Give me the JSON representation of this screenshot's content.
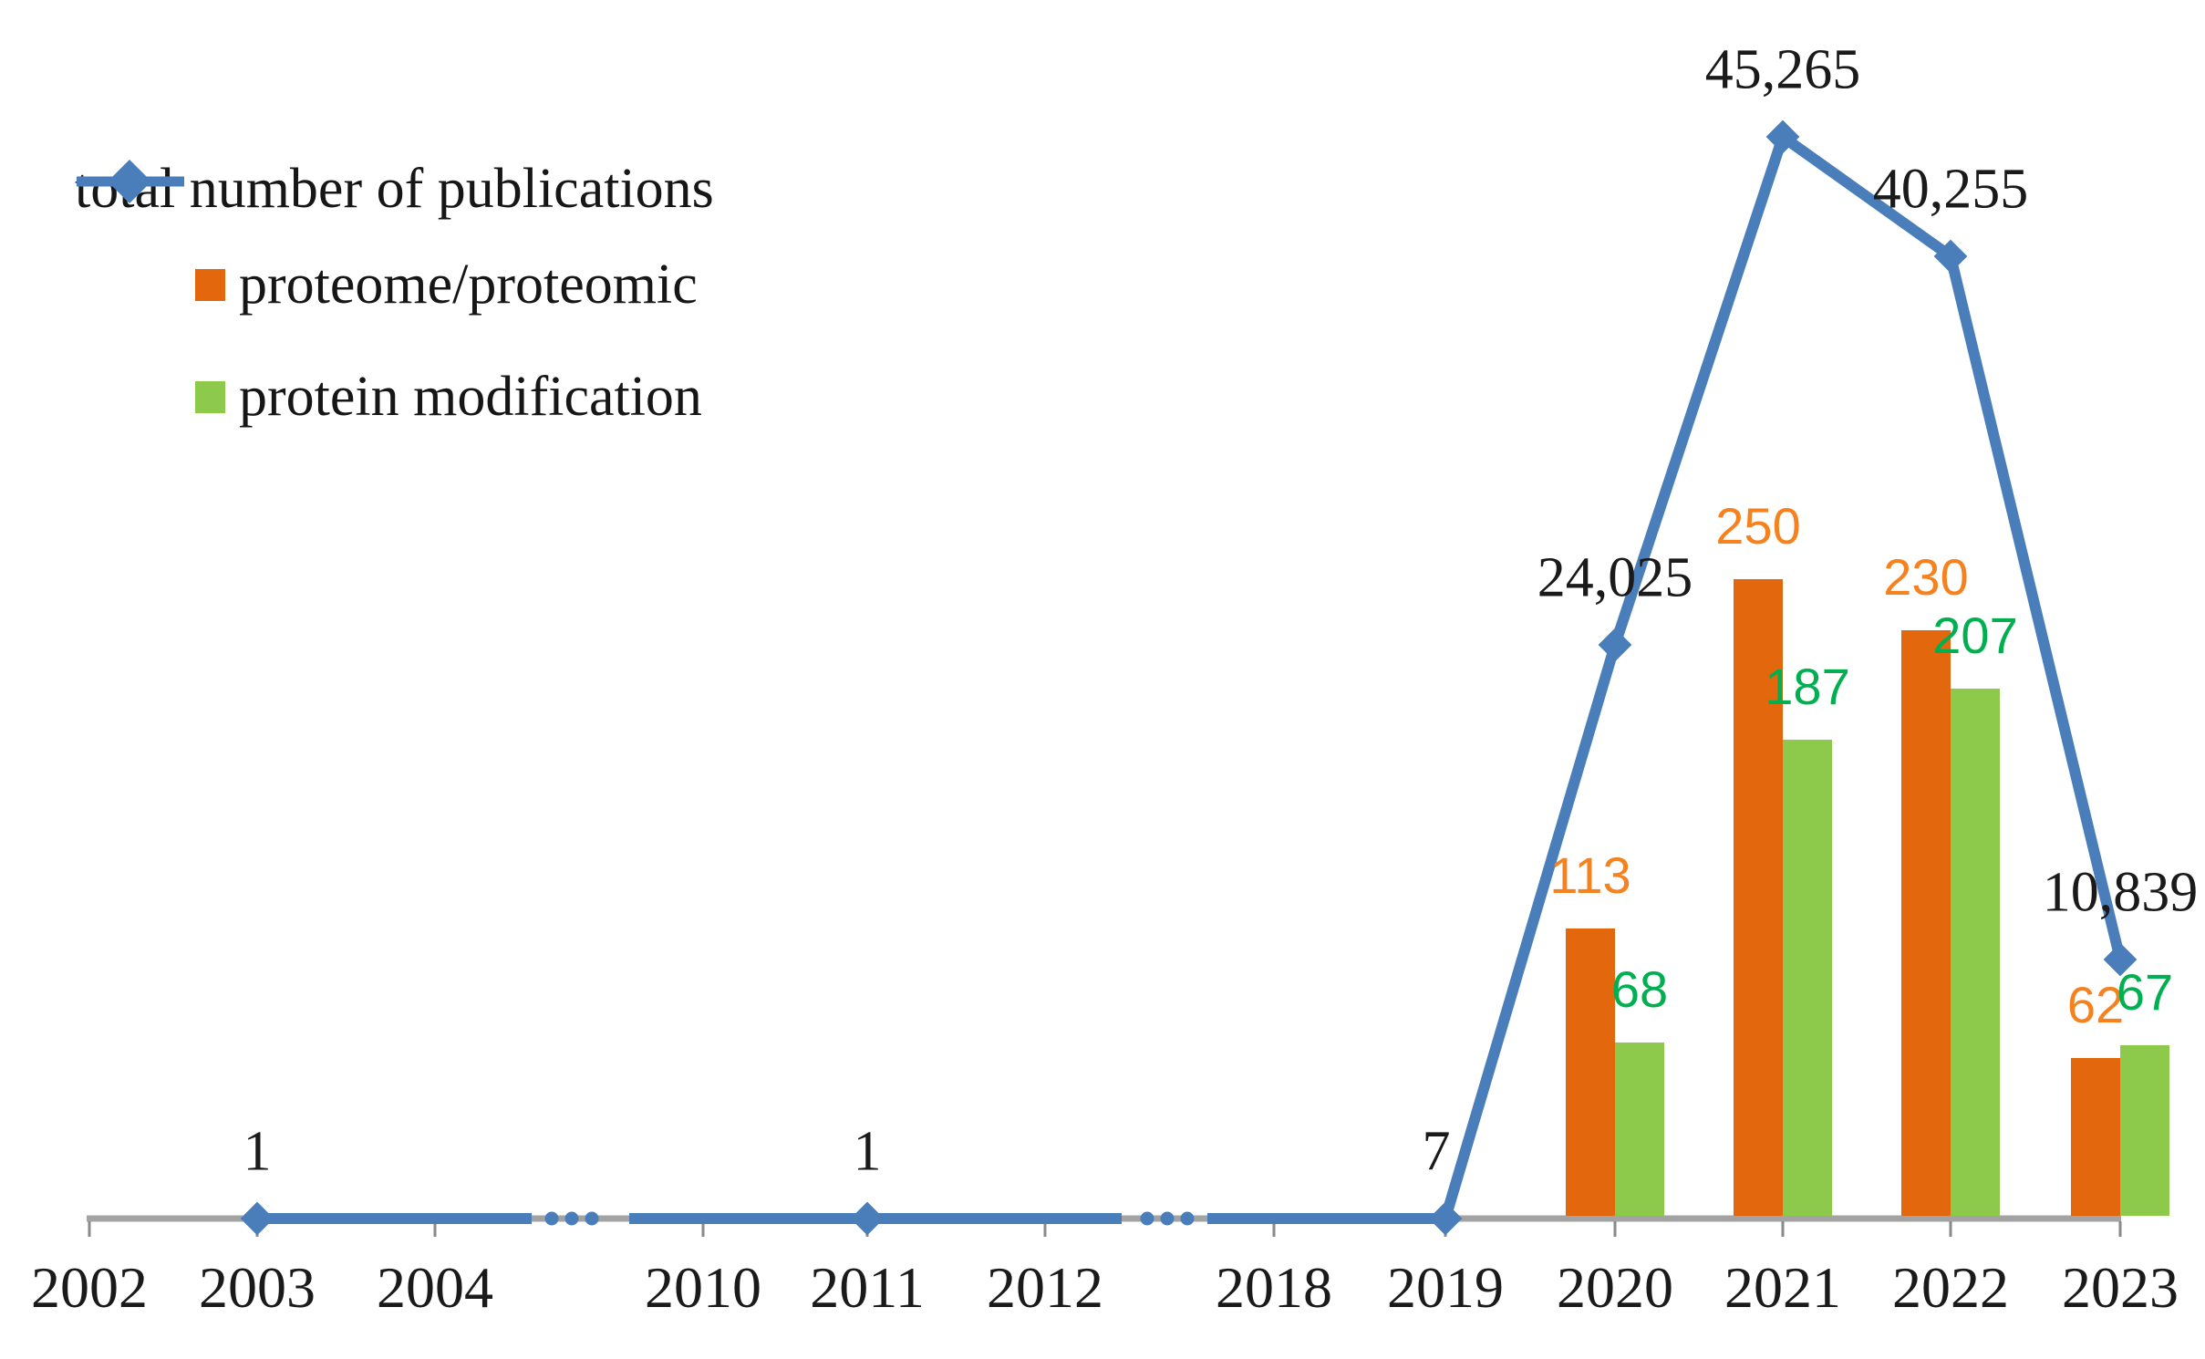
{
  "figure": {
    "type": "combo-chart",
    "background": "#FFFFFF",
    "colors": {
      "line_blue": "#4A7EBB",
      "bar_orange": "#E2670D",
      "bar_green": "#8DC94A",
      "label_orange": "#F5821E",
      "label_green": "#00B050",
      "axis_gray": "#A3A3A3",
      "tick_gray": "#8A8A8A",
      "text_black": "#1A1A1A"
    }
  },
  "legend": {
    "items": [
      {
        "label": "total number of publications",
        "marker": "line-diamond",
        "color": "#4A7EBB"
      },
      {
        "label": "proteome/proteomic",
        "marker": "square",
        "color": "#E2670D"
      },
      {
        "label": "protein modification",
        "marker": "square",
        "color": "#8DC94A"
      }
    ]
  },
  "chart_data": {
    "type": "combo (line + grouped bars)",
    "title": "",
    "xlabel": "",
    "ylabel": "",
    "grid": false,
    "y_axis_visible": false,
    "legend_position": "top-left",
    "x_tick_labels": [
      "2002",
      "2003",
      "2004",
      "2010",
      "2011",
      "2012",
      "2018",
      "2019",
      "2020",
      "2021",
      "2022",
      "2023"
    ],
    "axis_breaks": [
      {
        "between": [
          "2004",
          "2010"
        ],
        "style": "three-dots"
      },
      {
        "between": [
          "2012",
          "2018"
        ],
        "style": "three-dots"
      }
    ],
    "line_series": {
      "name": "total number of publications",
      "color": "#4A7EBB",
      "marker": "diamond",
      "points": [
        {
          "year": "2003",
          "value": 1,
          "label": "1"
        },
        {
          "year": "2011",
          "value": 1,
          "label": "1"
        },
        {
          "year": "2019",
          "value": 7,
          "label": "7"
        },
        {
          "year": "2020",
          "value": 24025,
          "label": "24,025"
        },
        {
          "year": "2021",
          "value": 45265,
          "label": "45,265"
        },
        {
          "year": "2022",
          "value": 40255,
          "label": "40,255"
        },
        {
          "year": "2023",
          "value": 10839,
          "label": "10,839"
        }
      ]
    },
    "bar_series": [
      {
        "name": "proteome/proteomic",
        "color": "#E2670D",
        "label_color": "#F5821E",
        "points": [
          {
            "year": "2020",
            "value": 113,
            "label": "113"
          },
          {
            "year": "2021",
            "value": 250,
            "label": "250"
          },
          {
            "year": "2022",
            "value": 230,
            "label": "230"
          },
          {
            "year": "2023",
            "value": 62,
            "label": "62"
          }
        ]
      },
      {
        "name": "protein modification",
        "color": "#8DC94A",
        "label_color": "#00B050",
        "points": [
          {
            "year": "2020",
            "value": 68,
            "label": "68"
          },
          {
            "year": "2021",
            "value": 187,
            "label": "187"
          },
          {
            "year": "2022",
            "value": 207,
            "label": "207"
          },
          {
            "year": "2023",
            "value": 67,
            "label": "67"
          }
        ]
      }
    ]
  }
}
